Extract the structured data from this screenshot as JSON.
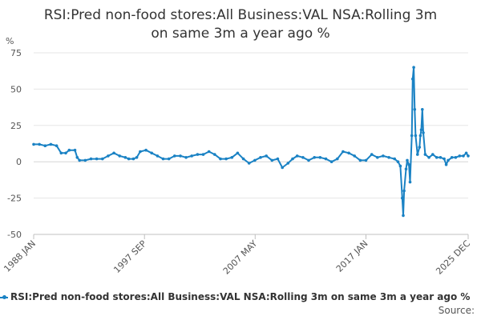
{
  "chart_data": {
    "type": "line",
    "title_lines": [
      "RSI:Pred non-food stores:All Business:VAL NSA:Rolling 3m",
      "on same 3m a year ago %"
    ],
    "ylabel": "%",
    "ylim": [
      -50,
      75
    ],
    "yticks": [
      75,
      50,
      25,
      0,
      -25,
      -50
    ],
    "ytick_labels": [
      "75",
      "50",
      "25",
      "0",
      "-25",
      "-50"
    ],
    "xlim": [
      1988.0,
      2025.92
    ],
    "xticks": [
      {
        "year": 1988.0,
        "label": "1988 JAN"
      },
      {
        "year": 1997.67,
        "label": "1997 SEP"
      },
      {
        "year": 2007.33,
        "label": "2007 MAY"
      },
      {
        "year": 2017.0,
        "label": "2017 JAN"
      },
      {
        "year": 2025.92,
        "label": "2025 DEC"
      }
    ],
    "grid": true,
    "legend_position": "bottom",
    "series": [
      {
        "name": "RSI:Pred non-food stores:All Business:VAL NSA:Rolling 3m on same 3m a year ago %",
        "color": "#1a82c4",
        "points": [
          [
            1988.0,
            12
          ],
          [
            1988.5,
            12
          ],
          [
            1989.0,
            11
          ],
          [
            1989.5,
            12
          ],
          [
            1990.0,
            11
          ],
          [
            1990.4,
            6
          ],
          [
            1990.8,
            6
          ],
          [
            1991.1,
            8
          ],
          [
            1991.6,
            8
          ],
          [
            1991.8,
            3
          ],
          [
            1992.0,
            1
          ],
          [
            1992.5,
            1
          ],
          [
            1993.0,
            2
          ],
          [
            1993.5,
            2
          ],
          [
            1994.0,
            2
          ],
          [
            1994.5,
            4
          ],
          [
            1995.0,
            6
          ],
          [
            1995.5,
            4
          ],
          [
            1996.0,
            3
          ],
          [
            1996.3,
            2
          ],
          [
            1996.7,
            2
          ],
          [
            1997.0,
            3
          ],
          [
            1997.3,
            7
          ],
          [
            1997.8,
            8
          ],
          [
            1998.3,
            6
          ],
          [
            1998.8,
            4
          ],
          [
            1999.3,
            2
          ],
          [
            1999.8,
            2
          ],
          [
            2000.3,
            4
          ],
          [
            2000.8,
            4
          ],
          [
            2001.3,
            3
          ],
          [
            2001.8,
            4
          ],
          [
            2002.3,
            5
          ],
          [
            2002.8,
            5
          ],
          [
            2003.3,
            7
          ],
          [
            2003.8,
            5
          ],
          [
            2004.3,
            2
          ],
          [
            2004.8,
            2
          ],
          [
            2005.3,
            3
          ],
          [
            2005.8,
            6
          ],
          [
            2006.3,
            2
          ],
          [
            2006.8,
            -1
          ],
          [
            2007.3,
            1
          ],
          [
            2007.8,
            3
          ],
          [
            2008.3,
            4
          ],
          [
            2008.8,
            1
          ],
          [
            2009.3,
            2
          ],
          [
            2009.7,
            -4
          ],
          [
            2010.2,
            -1
          ],
          [
            2010.6,
            2
          ],
          [
            2011.0,
            4
          ],
          [
            2011.5,
            3
          ],
          [
            2012.0,
            1
          ],
          [
            2012.5,
            3
          ],
          [
            2013.0,
            3
          ],
          [
            2013.5,
            2
          ],
          [
            2014.0,
            0
          ],
          [
            2014.5,
            2
          ],
          [
            2015.0,
            7
          ],
          [
            2015.5,
            6
          ],
          [
            2016.0,
            4
          ],
          [
            2016.5,
            1
          ],
          [
            2017.0,
            1
          ],
          [
            2017.5,
            5
          ],
          [
            2018.0,
            3
          ],
          [
            2018.5,
            4
          ],
          [
            2019.0,
            3
          ],
          [
            2019.5,
            2
          ],
          [
            2019.8,
            0
          ],
          [
            2020.0,
            -3
          ],
          [
            2020.17,
            -25
          ],
          [
            2020.25,
            -37
          ],
          [
            2020.33,
            -20
          ],
          [
            2020.5,
            -5
          ],
          [
            2020.6,
            1
          ],
          [
            2020.75,
            -2
          ],
          [
            2020.85,
            -14
          ],
          [
            2021.0,
            18
          ],
          [
            2021.08,
            57
          ],
          [
            2021.17,
            65
          ],
          [
            2021.25,
            36
          ],
          [
            2021.33,
            18
          ],
          [
            2021.5,
            5
          ],
          [
            2021.67,
            10
          ],
          [
            2021.75,
            18
          ],
          [
            2021.83,
            22
          ],
          [
            2021.92,
            36
          ],
          [
            2022.0,
            20
          ],
          [
            2022.17,
            5
          ],
          [
            2022.5,
            3
          ],
          [
            2022.83,
            5
          ],
          [
            2023.17,
            3
          ],
          [
            2023.5,
            3
          ],
          [
            2023.83,
            2
          ],
          [
            2024.0,
            -2
          ],
          [
            2024.17,
            1
          ],
          [
            2024.5,
            3
          ],
          [
            2024.83,
            3
          ],
          [
            2025.17,
            4
          ],
          [
            2025.5,
            4
          ],
          [
            2025.75,
            6
          ],
          [
            2025.92,
            4
          ]
        ]
      }
    ]
  },
  "source_label": "Source:"
}
